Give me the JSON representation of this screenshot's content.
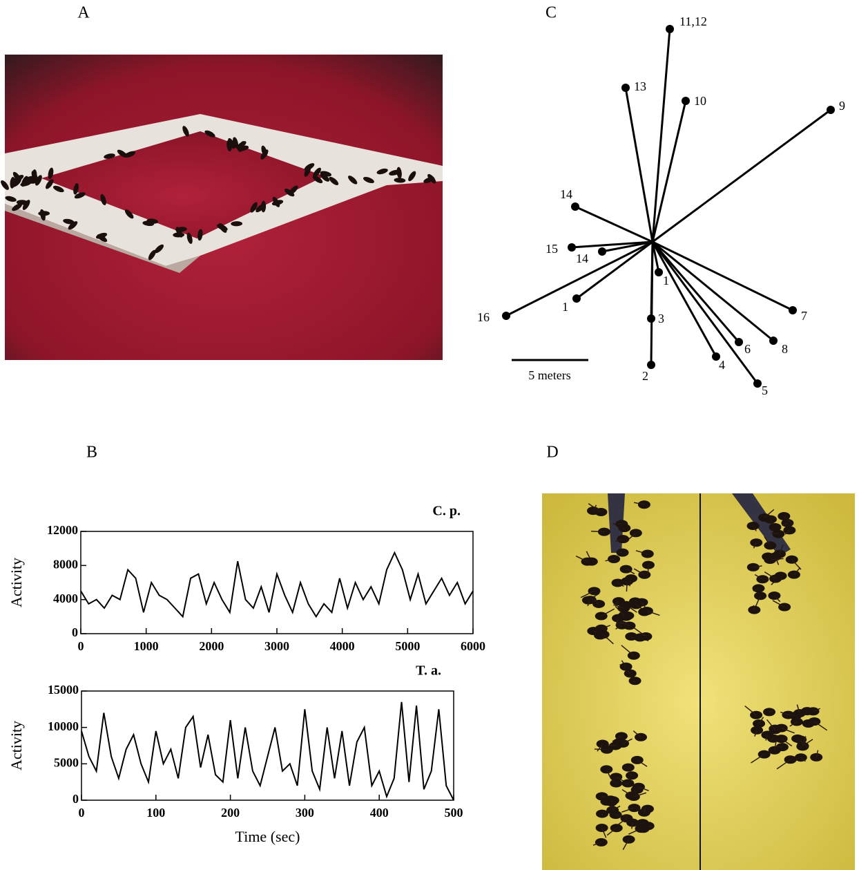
{
  "panels": [
    {
      "label": "A"
    },
    {
      "label": "B"
    },
    {
      "label": "C"
    },
    {
      "label": "D"
    }
  ],
  "diagram": {
    "scale_label": "5 meters",
    "nodes": [
      {
        "label": "11,12"
      },
      {
        "label": "13"
      },
      {
        "label": "10"
      },
      {
        "label": "9"
      },
      {
        "label": "14"
      },
      {
        "label": "15"
      },
      {
        "label": "14"
      },
      {
        "label": "1"
      },
      {
        "label": "1"
      },
      {
        "label": "16"
      },
      {
        "label": "3"
      },
      {
        "label": "7"
      },
      {
        "label": "8"
      },
      {
        "label": "6"
      },
      {
        "label": "4"
      },
      {
        "label": "5"
      },
      {
        "label": "2"
      }
    ]
  },
  "chart_data": [
    {
      "type": "line",
      "title": "C. p.",
      "ylabel": "Activity",
      "color": "#000000",
      "xlim": [
        0,
        6000
      ],
      "ylim": [
        0,
        12000
      ],
      "xticks": [
        0,
        1000,
        2000,
        3000,
        4000,
        5000,
        6000
      ],
      "yticks": [
        0,
        4000,
        8000,
        12000
      ],
      "x": [
        0,
        120,
        240,
        360,
        480,
        600,
        720,
        840,
        960,
        1080,
        1200,
        1320,
        1440,
        1560,
        1680,
        1800,
        1920,
        2040,
        2160,
        2280,
        2400,
        2520,
        2640,
        2760,
        2880,
        3000,
        3120,
        3240,
        3360,
        3480,
        3600,
        3720,
        3840,
        3960,
        4080,
        4200,
        4320,
        4440,
        4560,
        4680,
        4800,
        4920,
        5040,
        5160,
        5280,
        5400,
        5520,
        5640,
        5760,
        5880,
        6000
      ],
      "values": [
        5000,
        3500,
        4000,
        3000,
        4500,
        4000,
        7500,
        6500,
        2500,
        6000,
        4500,
        4000,
        3000,
        2000,
        6500,
        7000,
        3500,
        6000,
        4000,
        2500,
        8500,
        4000,
        3000,
        5500,
        2500,
        7000,
        4500,
        2500,
        6000,
        3500,
        2000,
        3500,
        2500,
        6500,
        3000,
        6000,
        4000,
        5500,
        3500,
        7500,
        9500,
        7500,
        4000,
        7000,
        3500,
        5000,
        6500,
        4500,
        6000,
        3500,
        5000
      ]
    },
    {
      "type": "line",
      "title": "T. a.",
      "ylabel": "Activity",
      "xlabel": "Time (sec)",
      "color": "#000000",
      "xlim": [
        0,
        500
      ],
      "ylim": [
        0,
        15000
      ],
      "xticks": [
        0,
        100,
        200,
        300,
        400,
        500
      ],
      "yticks": [
        0,
        5000,
        10000,
        15000
      ],
      "x": [
        0,
        10,
        20,
        30,
        40,
        50,
        60,
        70,
        80,
        90,
        100,
        110,
        120,
        130,
        140,
        150,
        160,
        170,
        180,
        190,
        200,
        210,
        220,
        230,
        240,
        250,
        260,
        270,
        280,
        290,
        300,
        310,
        320,
        330,
        340,
        350,
        360,
        370,
        380,
        390,
        400,
        410,
        420,
        430,
        440,
        450,
        460,
        470,
        480,
        490,
        500
      ],
      "values": [
        9500,
        6000,
        4000,
        12000,
        6000,
        3000,
        7000,
        9000,
        5000,
        2500,
        9500,
        5000,
        7000,
        3000,
        10000,
        11500,
        4500,
        9000,
        3500,
        2500,
        11000,
        3000,
        10000,
        4000,
        2000,
        6000,
        10000,
        4000,
        5000,
        2000,
        12500,
        4000,
        1500,
        10000,
        3000,
        9500,
        2000,
        8000,
        10000,
        2000,
        4000,
        500,
        3000,
        13500,
        2500,
        13000,
        1500,
        4000,
        12500,
        2000,
        0
      ]
    }
  ]
}
